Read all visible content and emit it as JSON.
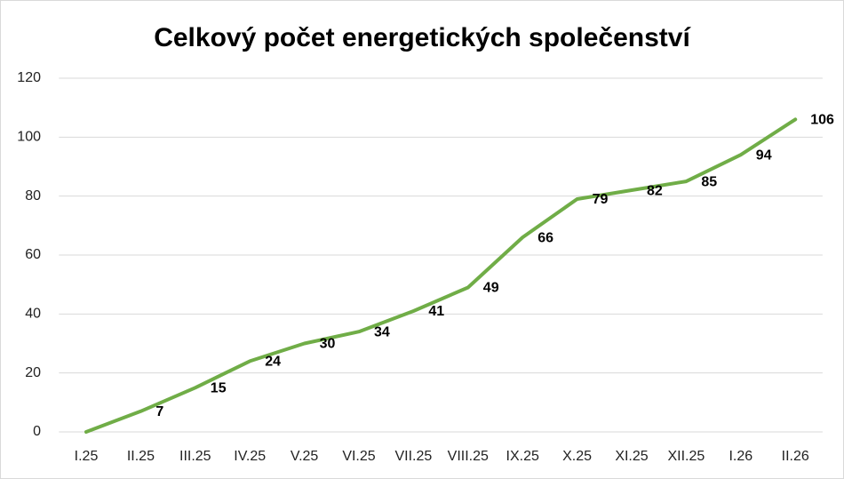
{
  "chart_data": {
    "type": "line",
    "title": "Celkový počet energetických společenství",
    "categories": [
      "I.25",
      "II.25",
      "III.25",
      "IV.25",
      "V.25",
      "VI.25",
      "VII.25",
      "VIII.25",
      "IX.25",
      "X.25",
      "XI.25",
      "XII.25",
      "I.26",
      "II.26"
    ],
    "values": [
      0,
      7,
      15,
      24,
      30,
      34,
      41,
      49,
      66,
      79,
      82,
      85,
      94,
      106
    ],
    "value_labels": [
      null,
      "7",
      "15",
      "24",
      "30",
      "34",
      "41",
      "49",
      "66",
      "79",
      "82",
      "85",
      "94",
      "106"
    ],
    "color": "#70ad47",
    "ylim": [
      0,
      120
    ],
    "yticks": [
      0,
      20,
      40,
      60,
      80,
      100,
      120
    ],
    "grid": true
  }
}
